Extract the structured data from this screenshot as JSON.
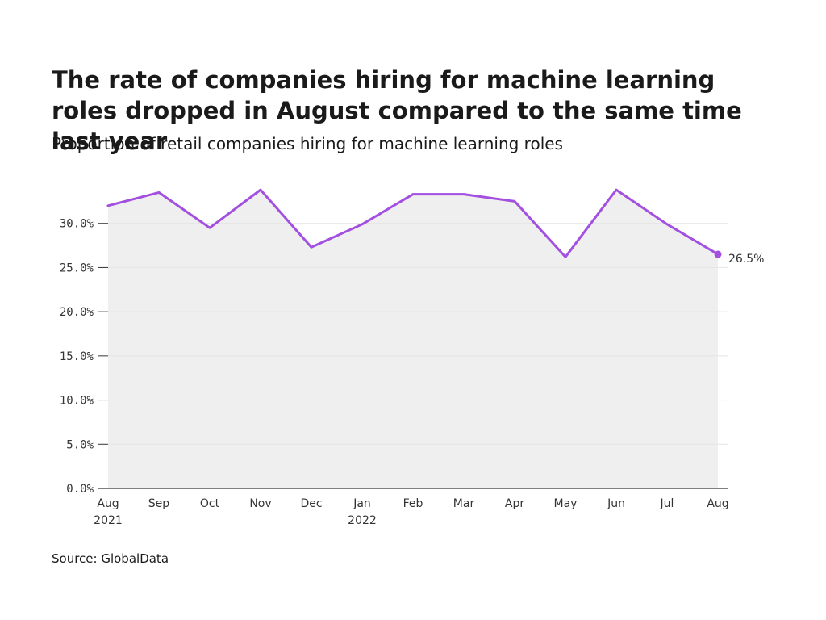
{
  "title": "The rate of companies hiring for machine learning roles dropped in August compared to the same time last year",
  "subtitle": "Proportion of retail companies hiring for machine learning roles",
  "source": "Source: GlobalData",
  "colors": {
    "line": "#a34fe0",
    "area": "#efefef",
    "grid": "#e4e4e4",
    "axis": "#333333"
  },
  "chart_data": {
    "type": "area",
    "categories": [
      "Aug\n2021",
      "Sep",
      "Oct",
      "Nov",
      "Dec",
      "Jan\n2022",
      "Feb",
      "Mar",
      "Apr",
      "May",
      "Jun",
      "Jul",
      "Aug"
    ],
    "values": [
      32.0,
      33.5,
      29.5,
      33.8,
      27.3,
      29.9,
      33.3,
      33.3,
      32.5,
      26.2,
      33.8,
      29.9,
      26.5
    ],
    "yticks": [
      "0.0%",
      "5.0%",
      "10.0%",
      "15.0%",
      "20.0%",
      "25.0%",
      "30.0%"
    ],
    "ylim": [
      0,
      35
    ],
    "end_label": "26.5%",
    "grid": true,
    "xlabel": "",
    "ylabel": ""
  }
}
